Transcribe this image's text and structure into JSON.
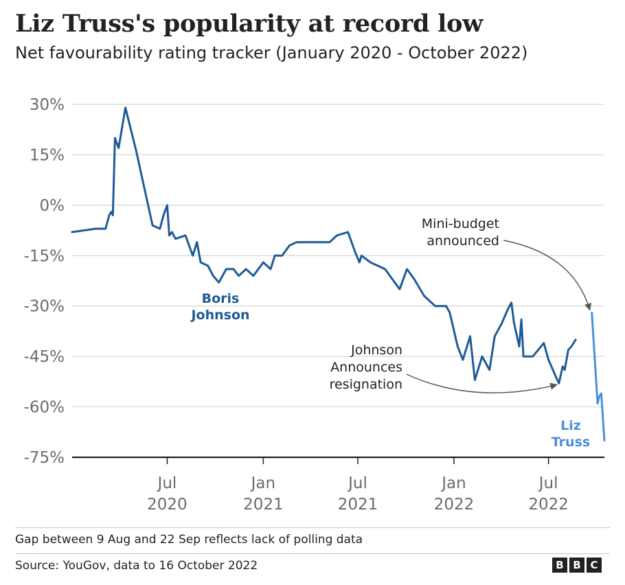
{
  "title": "Liz Truss's popularity at record low",
  "subtitle": "Net favourability rating tracker (January 2020 - October 2022)",
  "footer": {
    "note": "Gap between 9 Aug and 22 Sep reflects lack of polling data",
    "source": "Source: YouGov, data to 16 October 2022",
    "logo_letters": [
      "B",
      "B",
      "C"
    ]
  },
  "chart_data": {
    "type": "line",
    "title": "Liz Truss's popularity at record low",
    "subtitle": "Net favourability rating tracker (January 2020 - October 2022)",
    "y_unit": "%",
    "ylim": [
      -75,
      30
    ],
    "y_ticks": [
      30,
      15,
      0,
      -15,
      -30,
      -45,
      -60,
      -75
    ],
    "y_tick_labels": [
      "30%",
      "15%",
      "0%",
      "-15%",
      "-30%",
      "-45%",
      "-60%",
      "-75%"
    ],
    "xlim": [
      "2020-01-01",
      "2022-10-16"
    ],
    "x_ticks": [
      {
        "date": "2020-07-01",
        "month": "Jul",
        "year": "2020"
      },
      {
        "date": "2021-01-01",
        "month": "Jan",
        "year": "2021"
      },
      {
        "date": "2021-07-01",
        "month": "Jul",
        "year": "2021"
      },
      {
        "date": "2022-01-01",
        "month": "Jan",
        "year": "2022"
      },
      {
        "date": "2022-07-01",
        "month": "Jul",
        "year": "2022"
      }
    ],
    "grid": "horizontal",
    "legend": "none",
    "series": [
      {
        "name": "Boris Johnson",
        "label_lines": [
          "Boris",
          "Johnson"
        ],
        "color": "#1e5b94",
        "points": [
          [
            "2020-01-01",
            -8
          ],
          [
            "2020-02-15",
            -7
          ],
          [
            "2020-03-05",
            -7
          ],
          [
            "2020-03-12",
            -3
          ],
          [
            "2020-03-16",
            -2
          ],
          [
            "2020-03-19",
            -3
          ],
          [
            "2020-03-23",
            20
          ],
          [
            "2020-03-30",
            17
          ],
          [
            "2020-04-12",
            29
          ],
          [
            "2020-05-03",
            16
          ],
          [
            "2020-05-17",
            6
          ],
          [
            "2020-06-03",
            -6
          ],
          [
            "2020-06-17",
            -7
          ],
          [
            "2020-06-24",
            -3
          ],
          [
            "2020-07-01",
            0
          ],
          [
            "2020-07-05",
            -9
          ],
          [
            "2020-07-10",
            -8
          ],
          [
            "2020-07-17",
            -10
          ],
          [
            "2020-08-05",
            -9
          ],
          [
            "2020-08-19",
            -15
          ],
          [
            "2020-08-27",
            -11
          ],
          [
            "2020-09-03",
            -17
          ],
          [
            "2020-09-17",
            -18
          ],
          [
            "2020-09-27",
            -21
          ],
          [
            "2020-10-08",
            -23
          ],
          [
            "2020-10-22",
            -19
          ],
          [
            "2020-11-05",
            -19
          ],
          [
            "2020-11-15",
            -21
          ],
          [
            "2020-11-29",
            -19
          ],
          [
            "2020-12-13",
            -21
          ],
          [
            "2021-01-01",
            -17
          ],
          [
            "2021-01-15",
            -19
          ],
          [
            "2021-01-23",
            -15
          ],
          [
            "2021-02-06",
            -15
          ],
          [
            "2021-02-20",
            -12
          ],
          [
            "2021-03-06",
            -11
          ],
          [
            "2021-03-20",
            -11
          ],
          [
            "2021-04-10",
            -11
          ],
          [
            "2021-05-08",
            -11
          ],
          [
            "2021-05-22",
            -9
          ],
          [
            "2021-06-12",
            -8
          ],
          [
            "2021-06-26",
            -14
          ],
          [
            "2021-07-04",
            -17
          ],
          [
            "2021-07-08",
            -15
          ],
          [
            "2021-07-25",
            -17
          ],
          [
            "2021-08-22",
            -19
          ],
          [
            "2021-09-19",
            -25
          ],
          [
            "2021-10-03",
            -19
          ],
          [
            "2021-10-17",
            -22
          ],
          [
            "2021-11-05",
            -27
          ],
          [
            "2021-11-26",
            -30
          ],
          [
            "2021-12-17",
            -30
          ],
          [
            "2021-12-24",
            -32
          ],
          [
            "2022-01-08",
            -42
          ],
          [
            "2022-01-18",
            -46
          ],
          [
            "2022-02-01",
            -39
          ],
          [
            "2022-02-10",
            -52
          ],
          [
            "2022-02-24",
            -45
          ],
          [
            "2022-03-10",
            -49
          ],
          [
            "2022-03-20",
            -39
          ],
          [
            "2022-04-03",
            -35
          ],
          [
            "2022-04-14",
            -31
          ],
          [
            "2022-04-21",
            -29
          ],
          [
            "2022-04-26",
            -35
          ],
          [
            "2022-05-06",
            -42
          ],
          [
            "2022-05-10",
            -34
          ],
          [
            "2022-05-14",
            -45
          ],
          [
            "2022-06-01",
            -45
          ],
          [
            "2022-06-22",
            -41
          ],
          [
            "2022-07-01",
            -46
          ],
          [
            "2022-07-15",
            -51
          ],
          [
            "2022-07-21",
            -53
          ],
          [
            "2022-07-28",
            -48
          ],
          [
            "2022-08-01",
            -49
          ],
          [
            "2022-08-08",
            -43
          ],
          [
            "2022-08-14",
            -42
          ],
          [
            "2022-08-22",
            -40
          ]
        ]
      },
      {
        "name": "Liz Truss",
        "label_lines": [
          "Liz",
          "Truss"
        ],
        "color": "#4a90d9",
        "points": [
          [
            "2022-09-22",
            -32
          ],
          [
            "2022-10-03",
            -59
          ],
          [
            "2022-10-06",
            -57
          ],
          [
            "2022-10-10",
            -56
          ],
          [
            "2022-10-16",
            -70
          ]
        ]
      }
    ],
    "annotations": [
      {
        "lines": [
          "Mini-budget",
          "announced"
        ],
        "date": "2022-09-22",
        "value": -32
      },
      {
        "lines": [
          "Johnson",
          "Announces",
          "resignation"
        ],
        "date": "2022-07-21",
        "value": -53
      }
    ]
  }
}
